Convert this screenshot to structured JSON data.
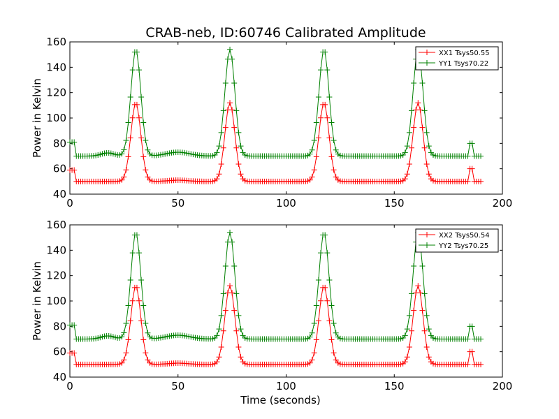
{
  "title": "CRAB-neb, ID:60746 Calibrated Amplitude",
  "chart_data": [
    {
      "type": "line",
      "ylabel": "Power in Kelvin",
      "xlabel": "",
      "xlim": [
        0,
        200
      ],
      "ylim": [
        40,
        160
      ],
      "xticks": [
        0,
        50,
        100,
        150,
        200
      ],
      "yticks": [
        40,
        60,
        80,
        100,
        120,
        140,
        160
      ],
      "legend_position": "top-right",
      "series": [
        {
          "name": "XX1 Tsys50.55",
          "color": "#ff0000",
          "baseline": 50,
          "peak": 112,
          "peak_times": [
            30.5,
            74,
            117.5,
            161
          ],
          "end_bump": 60,
          "start_value": 59
        },
        {
          "name": "YY1 Tsys70.22",
          "color": "#008000",
          "baseline": 70,
          "peak": 154,
          "peak_times": [
            30.5,
            74,
            117.5,
            161
          ],
          "end_bump": 80,
          "start_value": 81
        }
      ]
    },
    {
      "type": "line",
      "ylabel": "Power in Kelvin",
      "xlabel": "Time (seconds)",
      "xlim": [
        0,
        200
      ],
      "ylim": [
        40,
        160
      ],
      "xticks": [
        0,
        50,
        100,
        150,
        200
      ],
      "yticks": [
        40,
        60,
        80,
        100,
        120,
        140,
        160
      ],
      "legend_position": "top-right",
      "series": [
        {
          "name": "XX2 Tsys50.54",
          "color": "#ff0000",
          "baseline": 50,
          "peak": 112,
          "peak_times": [
            30.5,
            74,
            117.5,
            161
          ],
          "end_bump": 60,
          "start_value": 59
        },
        {
          "name": "YY2 Tsys70.25",
          "color": "#008000",
          "baseline": 70,
          "peak": 154,
          "peak_times": [
            30.5,
            74,
            117.5,
            161
          ],
          "end_bump": 80,
          "start_value": 81
        }
      ]
    }
  ]
}
